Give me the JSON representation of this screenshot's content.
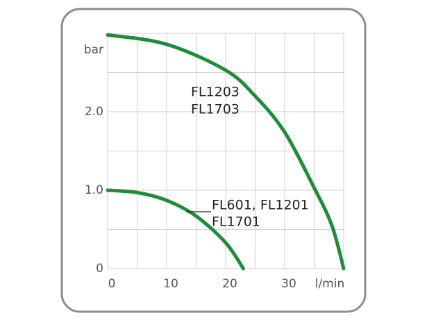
{
  "chart_data": {
    "type": "line",
    "xlabel": "l/min",
    "ylabel": "bar",
    "xlim": [
      0,
      40
    ],
    "ylim": [
      0,
      3
    ],
    "xticks": [
      0,
      10,
      20,
      30
    ],
    "yticks": [
      0,
      {
        "value": 1,
        "label": "1.0"
      },
      {
        "value": 2,
        "label": "2.0"
      }
    ],
    "xgrid": [
      0,
      5,
      10,
      15,
      20,
      25,
      30,
      35,
      40
    ],
    "ygrid": [
      0,
      0.5,
      1,
      1.5,
      2,
      2.5,
      3
    ],
    "grid": true,
    "series": [
      {
        "labels": [
          "FL1203",
          "FL1703"
        ],
        "color": "#1e8c3a",
        "x": [
          0,
          10,
          20,
          25,
          30,
          35,
          38,
          40
        ],
        "values": [
          2.98,
          2.86,
          2.53,
          2.2,
          1.74,
          1.03,
          0.55,
          0
        ]
      },
      {
        "labels": [
          "FL601, FL1201",
          "FL1701"
        ],
        "color": "#1e8c3a",
        "x": [
          0,
          5,
          10,
          15,
          20,
          23
        ],
        "values": [
          1.0,
          0.97,
          0.87,
          0.67,
          0.33,
          0
        ]
      }
    ]
  }
}
